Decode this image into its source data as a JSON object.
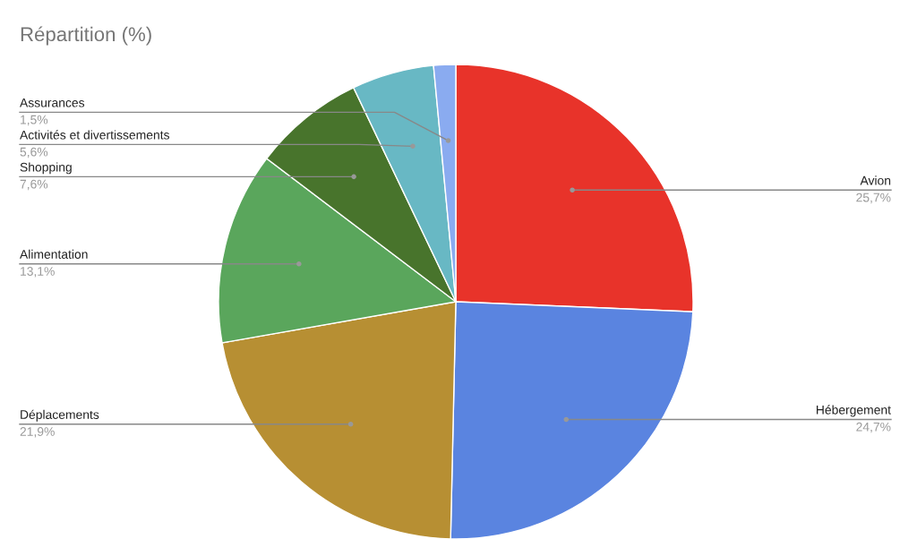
{
  "chart_data": {
    "type": "pie",
    "title": "Répartition (%)",
    "categories": [
      "Avion",
      "Hébergement",
      "Déplacements",
      "Alimentation",
      "Shopping",
      "Activités et divertissements",
      "Assurances"
    ],
    "values": [
      25.7,
      24.7,
      21.9,
      13.1,
      7.6,
      5.6,
      1.5
    ],
    "value_labels": [
      "25,7%",
      "24,7%",
      "21,9%",
      "13,1%",
      "7,6%",
      "5,6%",
      "1,5%"
    ],
    "colors": [
      "#e8332a",
      "#5a84e0",
      "#b78f33",
      "#5aa65c",
      "#48742c",
      "#68b8c4",
      "#8aabf0"
    ]
  }
}
